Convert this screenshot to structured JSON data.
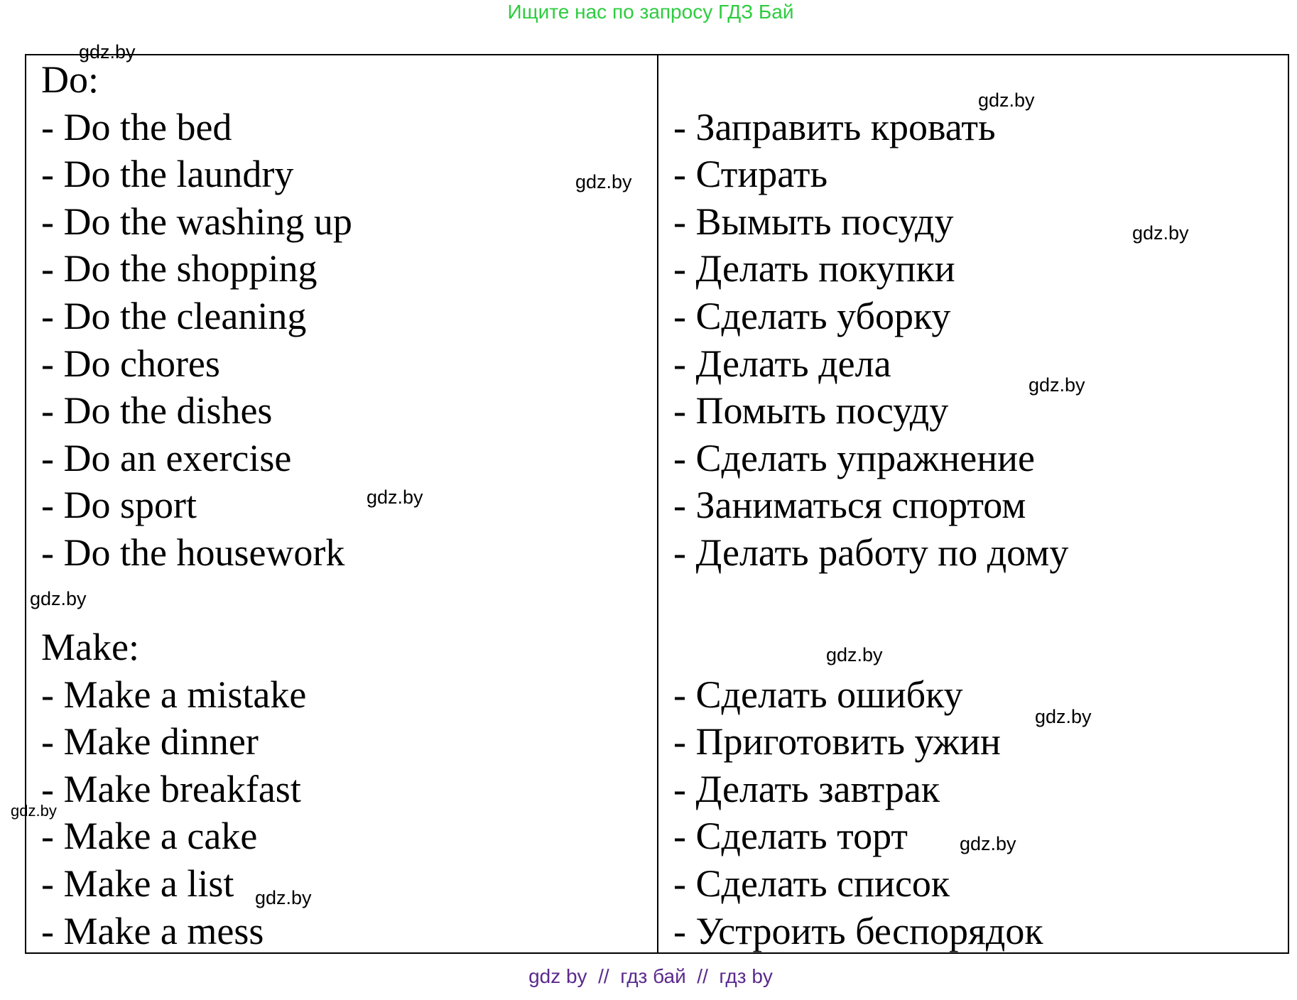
{
  "header": "Ищите нас по запросу ГДЗ Бай",
  "footer": "gdz by  //  гдз бай  //  гдз by",
  "do": {
    "heading": "Do:",
    "items": [
      "- Do the bed",
      "- Do the laundry",
      "- Do the washing up",
      "- Do the shopping",
      "- Do the cleaning",
      "- Do chores",
      "- Do the dishes",
      "- Do an exercise",
      "- Do sport",
      "- Do the housework"
    ],
    "translations": [
      "- Заправить кровать",
      "- Стирать",
      "- Вымыть посуду",
      "- Делать покупки",
      "- Сделать уборку",
      "- Делать дела",
      "- Помыть посуду",
      "- Сделать упражнение",
      "- Заниматься спортом",
      "- Делать работу по дому"
    ]
  },
  "make": {
    "heading": "Make:",
    "items": [
      "- Make a mistake",
      "- Make dinner",
      "- Make breakfast",
      "- Make a cake",
      "- Make a list",
      "- Make a mess"
    ],
    "translations": [
      "- Сделать ошибку",
      "- Приготовить ужин",
      "- Делать завтрак",
      "- Сделать торт",
      "- Сделать список",
      "- Устроить беспорядок"
    ]
  },
  "watermark": "gdz.by"
}
